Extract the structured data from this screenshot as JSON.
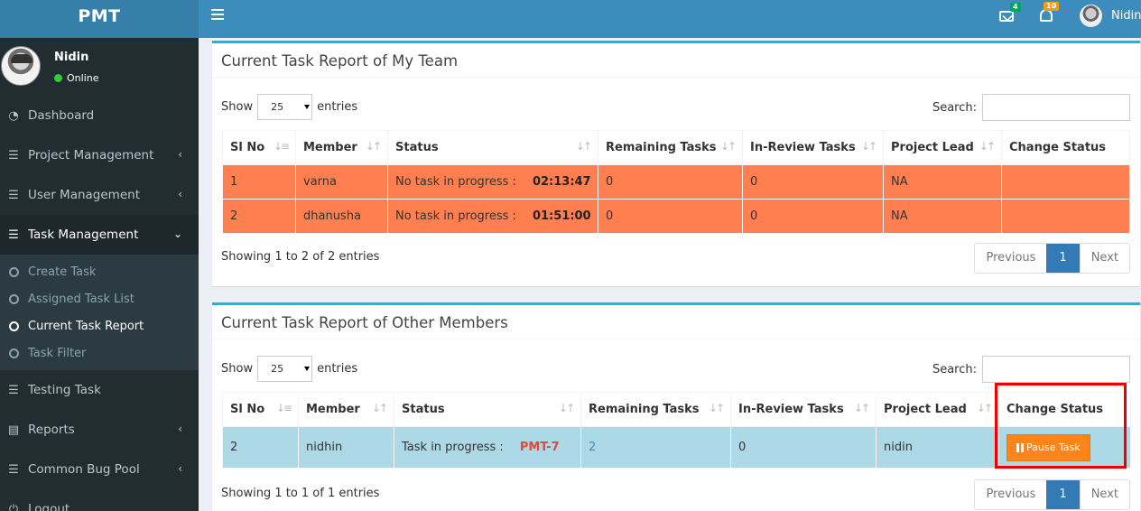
{
  "app": {
    "title": "PMT"
  },
  "user": {
    "name": "Nidin",
    "status": "Online"
  },
  "sidebar": {
    "items": [
      {
        "label": "Dashboard"
      },
      {
        "label": "Project Management"
      },
      {
        "label": "User Management"
      },
      {
        "label": "Task Management"
      },
      {
        "label": "Testing Task"
      },
      {
        "label": "Reports"
      },
      {
        "label": "Common Bug Pool"
      },
      {
        "label": "Logout"
      }
    ],
    "task_submenu": [
      {
        "label": "Create Task"
      },
      {
        "label": "Assigned Task List"
      },
      {
        "label": "Current Task Report"
      },
      {
        "label": "Task Filter"
      }
    ]
  },
  "header": {
    "mail_count": "4",
    "notif_count": "10",
    "user": "Nidin"
  },
  "team_report": {
    "title": "Current Task Report of My Team",
    "show_label": "Show",
    "entries_value": "25",
    "entries_label": "entries",
    "search_label": "Search:",
    "columns": [
      "Sl No",
      "Member",
      "Status",
      "Remaining Tasks",
      "In-Review Tasks",
      "Project Lead",
      "Change Status"
    ],
    "rows": [
      {
        "sl": "1",
        "member": "varna",
        "status": "No task in progress :",
        "time": "02:13:47",
        "remaining": "0",
        "review": "0",
        "lead": "NA",
        "change": ""
      },
      {
        "sl": "2",
        "member": "dhanusha",
        "status": "No task in progress :",
        "time": "01:51:00",
        "remaining": "0",
        "review": "0",
        "lead": "NA",
        "change": ""
      }
    ],
    "info": "Showing 1 to 2 of 2 entries",
    "pager": {
      "prev": "Previous",
      "page": "1",
      "next": "Next"
    }
  },
  "other_report": {
    "title": "Current Task Report of Other Members",
    "show_label": "Show",
    "entries_value": "25",
    "entries_label": "entries",
    "search_label": "Search:",
    "columns": [
      "Sl No",
      "Member",
      "Status",
      "Remaining Tasks",
      "In-Review Tasks",
      "Project Lead",
      "Change Status"
    ],
    "rows": [
      {
        "sl": "2",
        "member": "nidhin",
        "status": "Task in progress :",
        "task": "PMT-7",
        "remaining": "2",
        "review": "0",
        "lead": "nidin",
        "action": "Pause Task"
      }
    ],
    "info": "Showing 1 to 1 of 1 entries",
    "pager": {
      "prev": "Previous",
      "page": "1",
      "next": "Next"
    }
  },
  "colors": {
    "accent": "#3c8dbc",
    "sidebar": "#222d32",
    "row_orange": "#ff7f50",
    "row_blue": "#add8e6",
    "button_orange": "#ff851b",
    "highlight": "#e00000"
  }
}
